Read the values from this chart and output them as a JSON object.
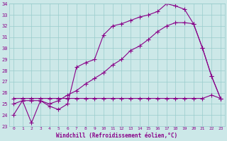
{
  "xlabel": "Windchill (Refroidissement éolien,°C)",
  "bg_color": "#cce8e8",
  "line_color": "#880088",
  "grid_color": "#99cccc",
  "xlim": [
    -0.5,
    23.5
  ],
  "ylim": [
    23,
    34
  ],
  "yticks": [
    23,
    24,
    25,
    26,
    27,
    28,
    29,
    30,
    31,
    32,
    33,
    34
  ],
  "xticks": [
    0,
    1,
    2,
    3,
    4,
    5,
    6,
    7,
    8,
    9,
    10,
    11,
    12,
    13,
    14,
    15,
    16,
    17,
    18,
    19,
    20,
    21,
    22,
    23
  ],
  "line1_x": [
    0,
    1,
    2,
    3,
    4,
    5,
    6,
    7,
    8,
    9,
    10,
    11,
    12,
    13,
    14,
    15,
    16,
    17,
    18,
    19,
    20,
    21,
    22,
    23
  ],
  "line1_y": [
    24.0,
    25.3,
    23.3,
    25.3,
    24.8,
    24.5,
    25.0,
    28.3,
    28.7,
    29.0,
    31.2,
    32.0,
    32.2,
    32.5,
    32.8,
    33.0,
    33.3,
    34.0,
    33.8,
    33.5,
    32.2,
    30.0,
    27.5,
    25.5
  ],
  "line2_x": [
    0,
    1,
    2,
    3,
    4,
    5,
    6,
    7,
    8,
    9,
    10,
    11,
    12,
    13,
    14,
    15,
    16,
    17,
    18,
    19,
    20,
    21,
    22,
    23
  ],
  "line2_y": [
    25.0,
    25.3,
    25.3,
    25.3,
    25.0,
    25.3,
    25.8,
    26.2,
    26.8,
    27.3,
    27.8,
    28.5,
    29.0,
    29.8,
    30.2,
    30.8,
    31.5,
    32.0,
    32.3,
    32.3,
    32.2,
    30.0,
    27.5,
    25.5
  ],
  "line3_x": [
    0,
    1,
    2,
    3,
    4,
    5,
    6,
    7,
    8,
    9,
    10,
    11,
    12,
    13,
    14,
    15,
    16,
    17,
    18,
    19,
    20,
    21,
    22,
    23
  ],
  "line3_y": [
    25.5,
    25.5,
    25.5,
    25.5,
    25.5,
    25.5,
    25.5,
    25.5,
    25.5,
    25.5,
    25.5,
    25.5,
    25.5,
    25.5,
    25.5,
    25.5,
    25.5,
    25.5,
    25.5,
    25.5,
    25.5,
    25.5,
    25.8,
    25.5
  ]
}
